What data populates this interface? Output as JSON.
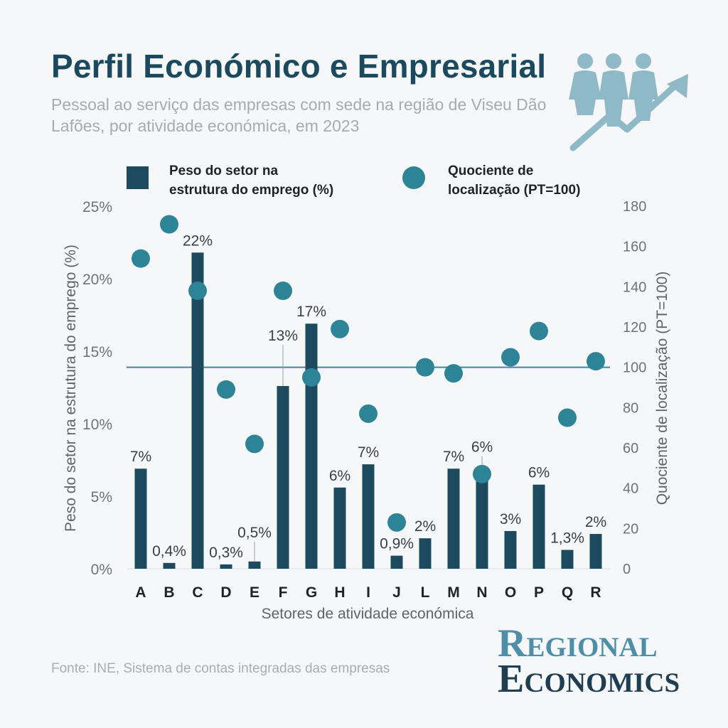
{
  "header": {
    "title": "Perfil Económico e Empresarial",
    "subtitle": "Pessoal ao serviço das empresas com sede na região de Viseu Dão Lafões, por atividade económica, em 2023"
  },
  "footer": {
    "source": "Fonte: INE, Sistema de contas integradas das empresas",
    "logo_line1": "Regional",
    "logo_line2": "Economics"
  },
  "icons": {
    "header_icon": "people-growth-arrow-icon"
  },
  "colors": {
    "bar": "#1d4a5f",
    "dot": "#2e8497",
    "reference_line": "#3b8a99",
    "axis_text": "#6e7378",
    "title": "#1b4a5e",
    "icon": "#8fb9c7"
  },
  "chart_data": {
    "type": "bar",
    "title": "Perfil Económico e Empresarial",
    "xlabel": "Setores de atividade económica",
    "ylabel": "Peso do setor na estrutura do emprego (%)",
    "y2label": "Quociente de localização  (PT=100)",
    "ylim": [
      0,
      25
    ],
    "y2lim": [
      0,
      180
    ],
    "yticks": [
      "0%",
      "5%",
      "10%",
      "15%",
      "20%",
      "25%"
    ],
    "y2ticks": [
      "0",
      "20",
      "40",
      "60",
      "80",
      "100",
      "120",
      "140",
      "160",
      "180"
    ],
    "legend": {
      "bars": "Peso do setor na estrutura do emprego (%)",
      "dots": "Quociente de localização (PT=100)",
      "placement": "top"
    },
    "reference_line": 100,
    "categories": [
      "A",
      "B",
      "C",
      "D",
      "E",
      "F",
      "G",
      "H",
      "I",
      "J",
      "L",
      "M",
      "N",
      "O",
      "P",
      "Q",
      "R"
    ],
    "series": [
      {
        "name": "Peso do setor na estrutura do emprego (%)",
        "kind": "bar",
        "axis": "left",
        "values": [
          6.9,
          0.4,
          21.8,
          0.3,
          0.5,
          12.6,
          16.9,
          5.6,
          7.2,
          0.9,
          2.1,
          6.9,
          6.3,
          2.6,
          5.8,
          1.3,
          2.4
        ],
        "labels": [
          "7%",
          "0,4%",
          "22%",
          "0,3%",
          "0,5%",
          "13%",
          "17%",
          "6%",
          "7%",
          "0,9%",
          "2%",
          "7%",
          "6%",
          "3%",
          "6%",
          "1,3%",
          "2%"
        ]
      },
      {
        "name": "Quociente de localização (PT=100)",
        "kind": "scatter",
        "axis": "right",
        "values": [
          154,
          171,
          138,
          89,
          62,
          138,
          95,
          119,
          77,
          23,
          100,
          97,
          47,
          105,
          118,
          75,
          103
        ]
      }
    ]
  }
}
